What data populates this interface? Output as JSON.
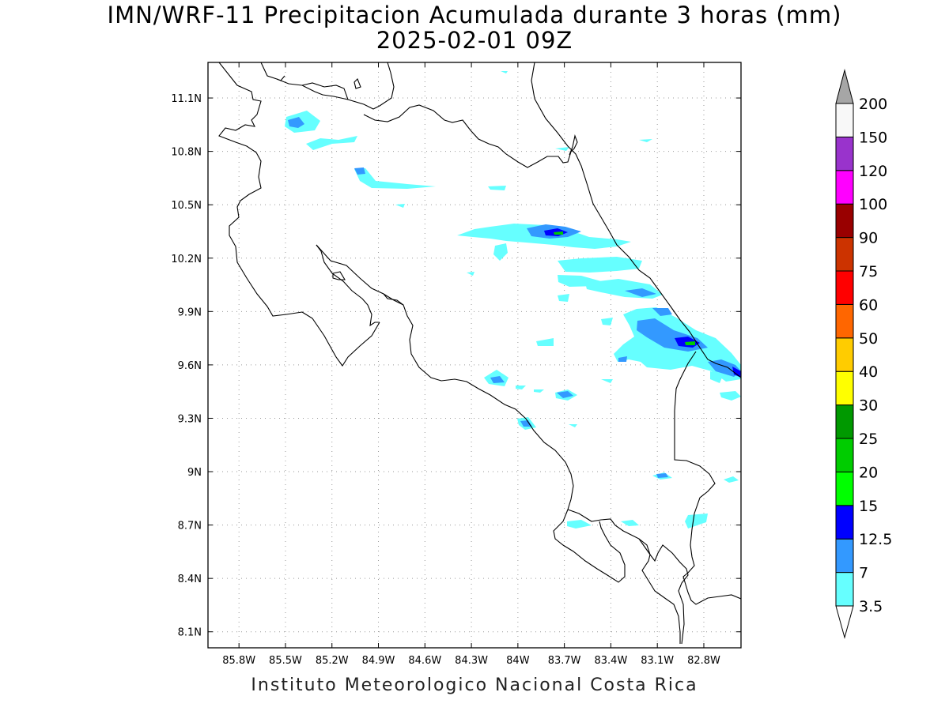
{
  "title_line1": "IMN/WRF-11 Precipitacion Acumulada durante 3 horas (mm)",
  "title_line2": "2025-02-01 09Z",
  "footer": "Instituto Meteorologico Nacional Costa Rica",
  "map": {
    "lon_range": [
      -86.0,
      -82.56
    ],
    "lat_range": [
      8.01,
      11.3
    ],
    "lon_ticks": [
      "85.8W",
      "85.5W",
      "85.2W",
      "84.9W",
      "84.6W",
      "84.3W",
      "84W",
      "83.7W",
      "83.4W",
      "83.1W",
      "82.8W"
    ],
    "lat_ticks": [
      "11.1N",
      "10.8N",
      "10.5N",
      "10.2N",
      "9.9N",
      "9.6N",
      "9.3N",
      "9N",
      "8.7N",
      "8.4N",
      "8.1N"
    ],
    "grid": "dotted"
  },
  "colorbar": {
    "levels": [
      "3.5",
      "7",
      "12.5",
      "15",
      "20",
      "25",
      "30",
      "40",
      "50",
      "60",
      "75",
      "90",
      "100",
      "120",
      "150",
      "200"
    ],
    "colors": [
      "#66ffff",
      "#3399ff",
      "#0000ff",
      "#00ff00",
      "#00cc00",
      "#009900",
      "#ffff00",
      "#ffcc00",
      "#ff6600",
      "#ff0000",
      "#cc3300",
      "#990000",
      "#ff00ff",
      "#9933cc",
      "#f8f8f8",
      "#a6a6a6"
    ]
  }
}
